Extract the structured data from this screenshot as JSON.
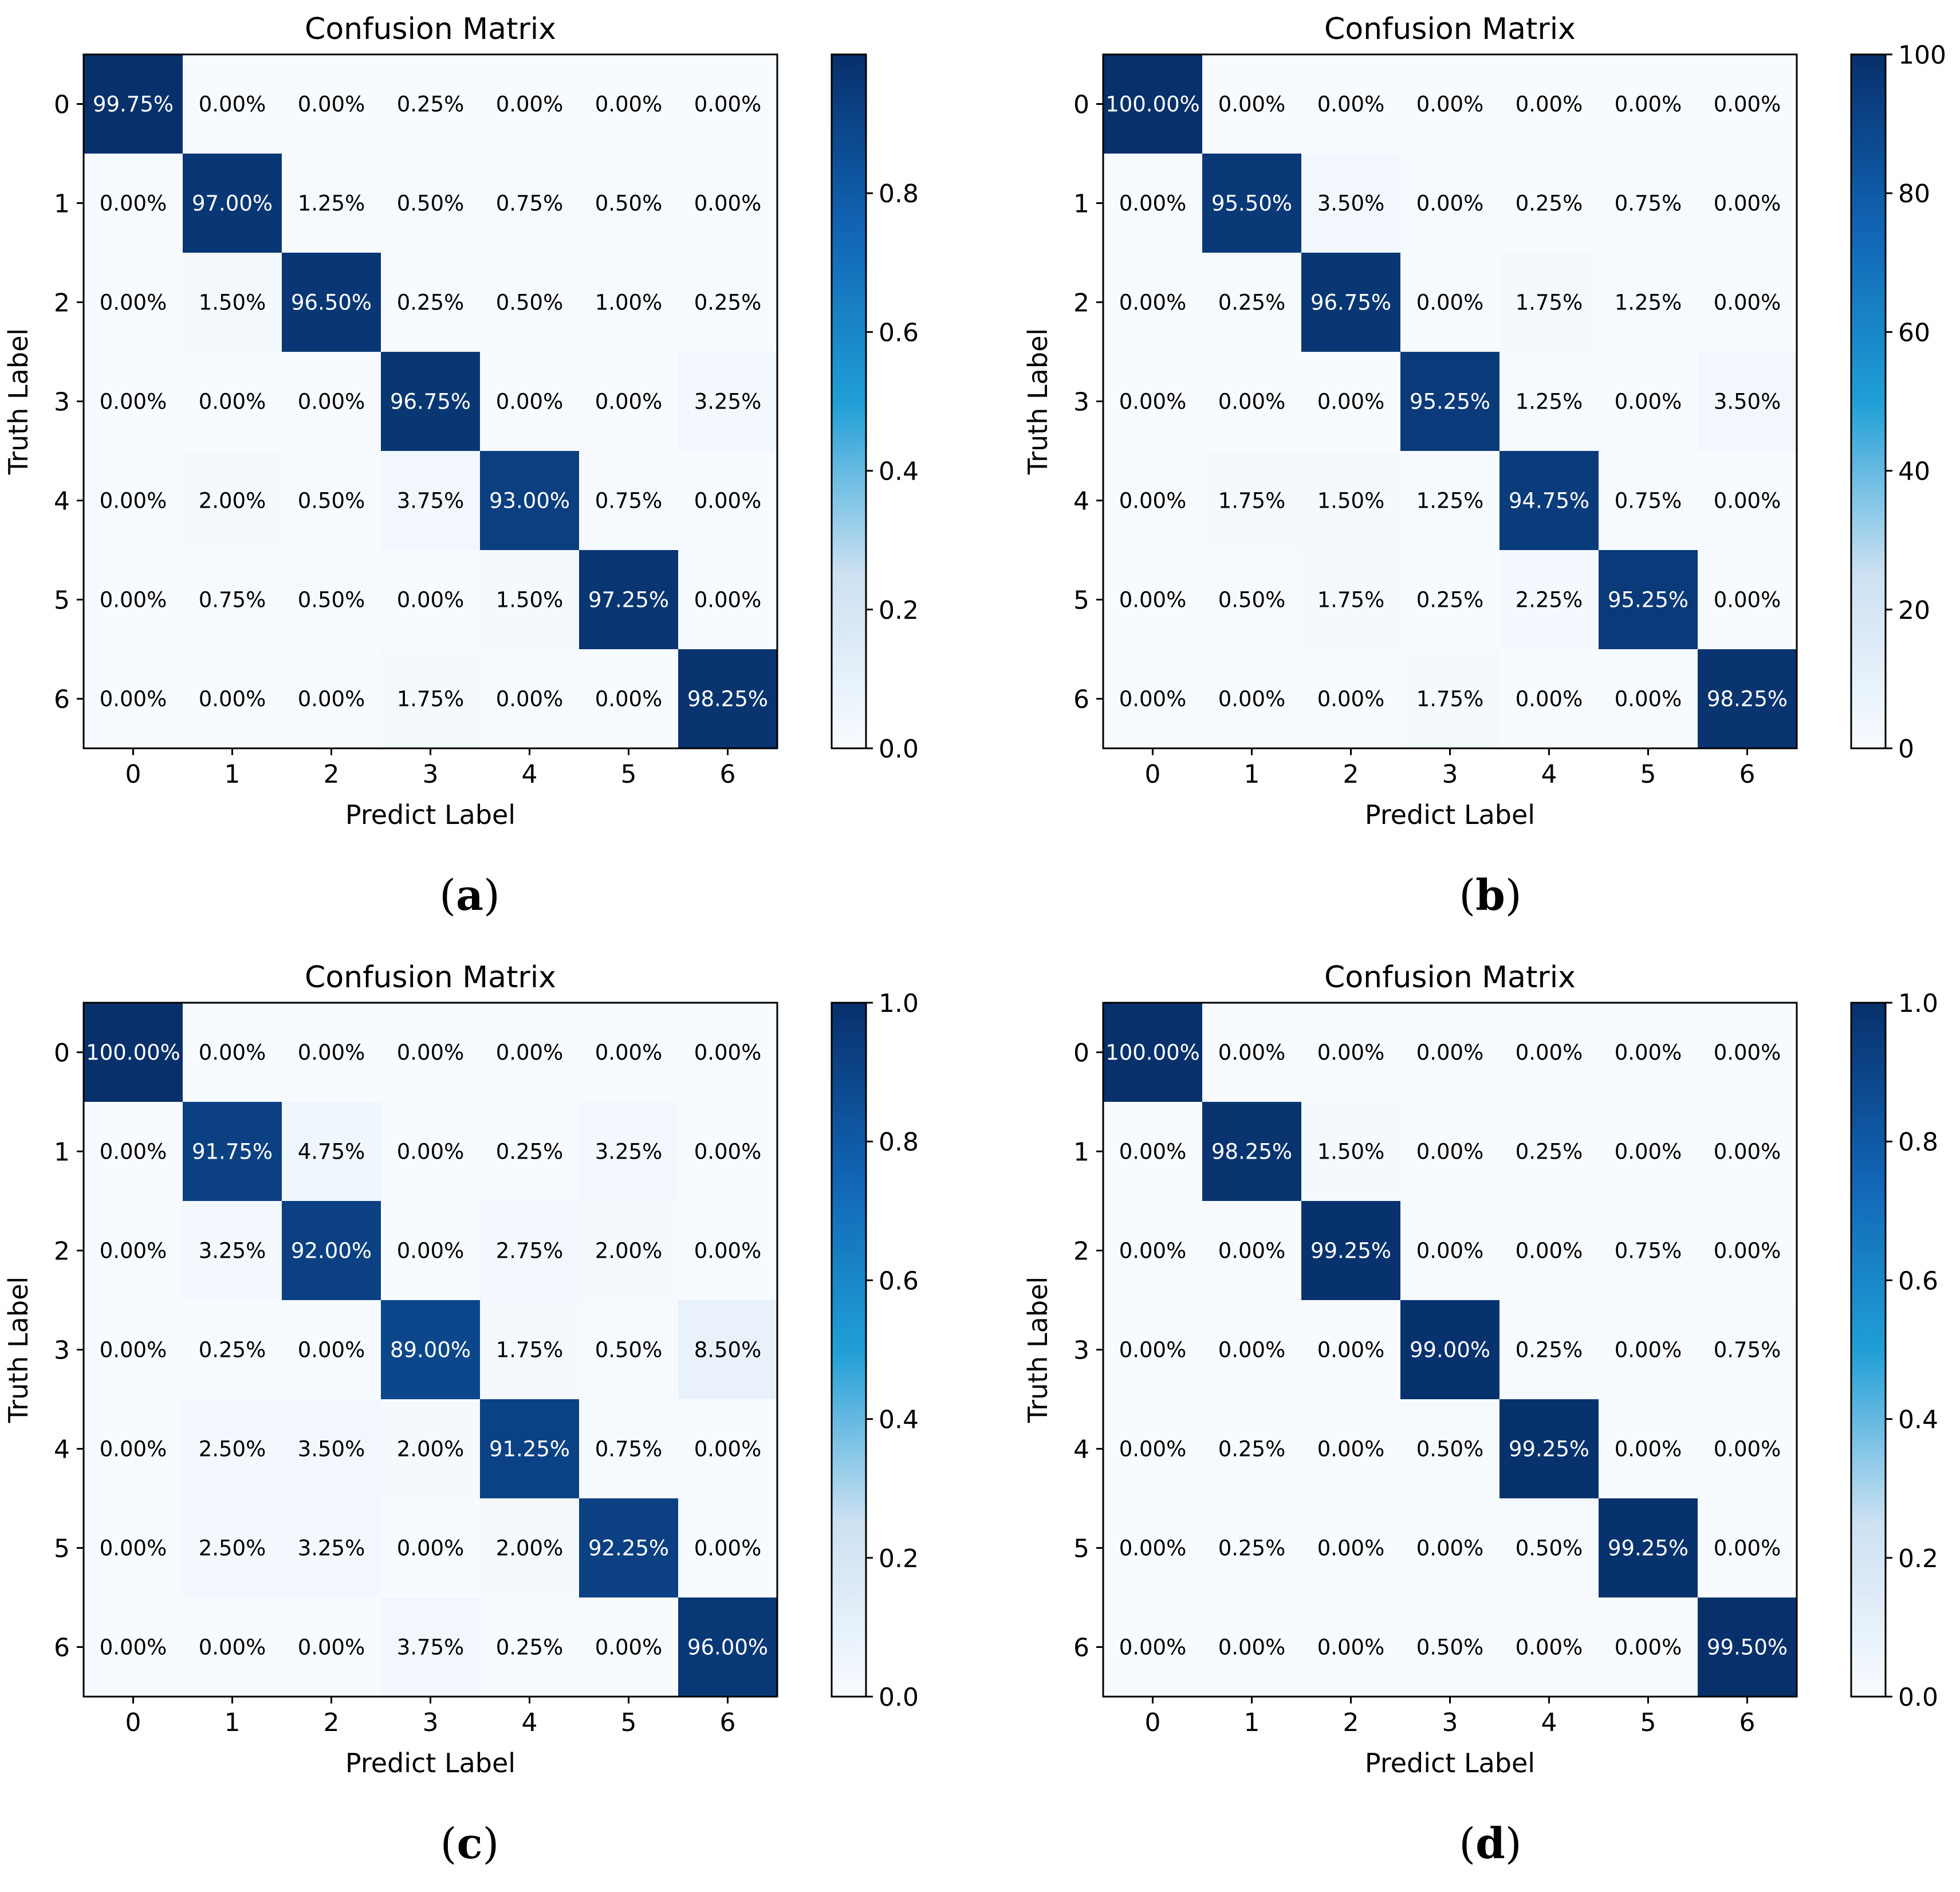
{
  "figure": {
    "panels": [
      {
        "label": "a"
      },
      {
        "label": "b"
      },
      {
        "label": "c"
      },
      {
        "label": "d"
      }
    ]
  },
  "colors": {
    "colormap_low": "#f7fbff",
    "colormap_mid": "#1f9fd6",
    "colormap_high": "#08306b",
    "text_dark": "#000000",
    "text_light": "#ffffff",
    "frame": "#000000"
  },
  "chart_data": [
    {
      "type": "heatmap",
      "title": "Confusion Matrix",
      "xlabel": "Predict Label",
      "ylabel": "Truth Label",
      "x_ticks": [
        "0",
        "1",
        "2",
        "3",
        "4",
        "5",
        "6"
      ],
      "y_ticks": [
        "0",
        "1",
        "2",
        "3",
        "4",
        "5",
        "6"
      ],
      "colorbar": {
        "min": 0,
        "max": 1.0,
        "ticks": [
          "0.0",
          "0.2",
          "0.4",
          "0.6",
          "0.8"
        ]
      },
      "cell_labels": [
        [
          "99.75%",
          "0.00%",
          "0.00%",
          "0.25%",
          "0.00%",
          "0.00%",
          "0.00%"
        ],
        [
          "0.00%",
          "97.00%",
          "1.25%",
          "0.50%",
          "0.75%",
          "0.50%",
          "0.00%"
        ],
        [
          "0.00%",
          "1.50%",
          "96.50%",
          "0.25%",
          "0.50%",
          "1.00%",
          "0.25%"
        ],
        [
          "0.00%",
          "0.00%",
          "0.00%",
          "96.75%",
          "0.00%",
          "0.00%",
          "3.25%"
        ],
        [
          "0.00%",
          "2.00%",
          "0.50%",
          "3.75%",
          "93.00%",
          "0.75%",
          "0.00%"
        ],
        [
          "0.00%",
          "0.75%",
          "0.50%",
          "0.00%",
          "1.50%",
          "97.25%",
          "0.00%"
        ],
        [
          "0.00%",
          "0.00%",
          "0.00%",
          "1.75%",
          "0.00%",
          "0.00%",
          "98.25%"
        ]
      ]
    },
    {
      "type": "heatmap",
      "title": "Confusion Matrix",
      "xlabel": "Predict Label",
      "ylabel": "Truth Label",
      "x_ticks": [
        "0",
        "1",
        "2",
        "3",
        "4",
        "5",
        "6"
      ],
      "y_ticks": [
        "0",
        "1",
        "2",
        "3",
        "4",
        "5",
        "6"
      ],
      "colorbar": {
        "min": 0,
        "max": 100,
        "ticks": [
          "0",
          "20",
          "40",
          "60",
          "80",
          "100"
        ]
      },
      "cell_labels": [
        [
          "100.00%",
          "0.00%",
          "0.00%",
          "0.00%",
          "0.00%",
          "0.00%",
          "0.00%"
        ],
        [
          "0.00%",
          "95.50%",
          "3.50%",
          "0.00%",
          "0.25%",
          "0.75%",
          "0.00%"
        ],
        [
          "0.00%",
          "0.25%",
          "96.75%",
          "0.00%",
          "1.75%",
          "1.25%",
          "0.00%"
        ],
        [
          "0.00%",
          "0.00%",
          "0.00%",
          "95.25%",
          "1.25%",
          "0.00%",
          "3.50%"
        ],
        [
          "0.00%",
          "1.75%",
          "1.50%",
          "1.25%",
          "94.75%",
          "0.75%",
          "0.00%"
        ],
        [
          "0.00%",
          "0.50%",
          "1.75%",
          "0.25%",
          "2.25%",
          "95.25%",
          "0.00%"
        ],
        [
          "0.00%",
          "0.00%",
          "0.00%",
          "1.75%",
          "0.00%",
          "0.00%",
          "98.25%"
        ]
      ]
    },
    {
      "type": "heatmap",
      "title": "Confusion Matrix",
      "xlabel": "Predict Label",
      "ylabel": "Truth Label",
      "x_ticks": [
        "0",
        "1",
        "2",
        "3",
        "4",
        "5",
        "6"
      ],
      "y_ticks": [
        "0",
        "1",
        "2",
        "3",
        "4",
        "5",
        "6"
      ],
      "colorbar": {
        "min": 0,
        "max": 1.0,
        "ticks": [
          "0.0",
          "0.2",
          "0.4",
          "0.6",
          "0.8",
          "1.0"
        ]
      },
      "cell_labels": [
        [
          "100.00%",
          "0.00%",
          "0.00%",
          "0.00%",
          "0.00%",
          "0.00%",
          "0.00%"
        ],
        [
          "0.00%",
          "91.75%",
          "4.75%",
          "0.00%",
          "0.25%",
          "3.25%",
          "0.00%"
        ],
        [
          "0.00%",
          "3.25%",
          "92.00%",
          "0.00%",
          "2.75%",
          "2.00%",
          "0.00%"
        ],
        [
          "0.00%",
          "0.25%",
          "0.00%",
          "89.00%",
          "1.75%",
          "0.50%",
          "8.50%"
        ],
        [
          "0.00%",
          "2.50%",
          "3.50%",
          "2.00%",
          "91.25%",
          "0.75%",
          "0.00%"
        ],
        [
          "0.00%",
          "2.50%",
          "3.25%",
          "0.00%",
          "2.00%",
          "92.25%",
          "0.00%"
        ],
        [
          "0.00%",
          "0.00%",
          "0.00%",
          "3.75%",
          "0.25%",
          "0.00%",
          "96.00%"
        ]
      ]
    },
    {
      "type": "heatmap",
      "title": "Confusion Matrix",
      "xlabel": "Predict Label",
      "ylabel": "Truth Label",
      "x_ticks": [
        "0",
        "1",
        "2",
        "3",
        "4",
        "5",
        "6"
      ],
      "y_ticks": [
        "0",
        "1",
        "2",
        "3",
        "4",
        "5",
        "6"
      ],
      "colorbar": {
        "min": 0,
        "max": 1.0,
        "ticks": [
          "0.0",
          "0.2",
          "0.4",
          "0.6",
          "0.8",
          "1.0"
        ]
      },
      "cell_labels": [
        [
          "100.00%",
          "0.00%",
          "0.00%",
          "0.00%",
          "0.00%",
          "0.00%",
          "0.00%"
        ],
        [
          "0.00%",
          "98.25%",
          "1.50%",
          "0.00%",
          "0.25%",
          "0.00%",
          "0.00%"
        ],
        [
          "0.00%",
          "0.00%",
          "99.25%",
          "0.00%",
          "0.00%",
          "0.75%",
          "0.00%"
        ],
        [
          "0.00%",
          "0.00%",
          "0.00%",
          "99.00%",
          "0.25%",
          "0.00%",
          "0.75%"
        ],
        [
          "0.00%",
          "0.25%",
          "0.00%",
          "0.50%",
          "99.25%",
          "0.00%",
          "0.00%"
        ],
        [
          "0.00%",
          "0.25%",
          "0.00%",
          "0.00%",
          "0.50%",
          "99.25%",
          "0.00%"
        ],
        [
          "0.00%",
          "0.00%",
          "0.00%",
          "0.50%",
          "0.00%",
          "0.00%",
          "99.50%"
        ]
      ]
    }
  ]
}
